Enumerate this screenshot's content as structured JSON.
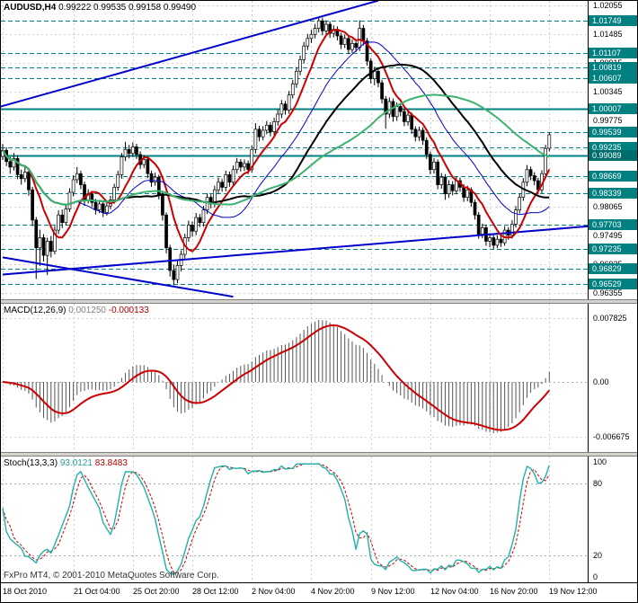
{
  "footer": {
    "branding": "FxPro MT4, © 2001-2010 MetaQuotes Software Corp."
  },
  "chart_data": [
    {
      "type": "candlestick",
      "title": "AUDUSD,H4",
      "ohlc_text": "0.99222 0.99535 0.99158 0.99490",
      "ohlc_label": {
        "open": "0.99222",
        "high": "0.99535",
        "low": "0.99158",
        "close": "0.99490"
      },
      "x_tick_labels": [
        "18 Oct 2010",
        "21 Oct 04:00",
        "25 Oct 20:00",
        "28 Oct 12:00",
        "2 Nov 04:00",
        "4 Nov 20:00",
        "9 Nov 12:00",
        "12 Nov 04:00",
        "16 Nov 20:00",
        "19 Nov 12:00"
      ],
      "x_tick_indices": [
        0,
        19,
        35,
        51,
        67,
        83,
        99,
        115,
        131,
        147
      ],
      "y_range": [
        0.9623,
        1.02144
      ],
      "y_grid": {
        "start": 0.96355,
        "step": 0.0057,
        "count": 11
      },
      "levels": [
        {
          "price": 1.01749,
          "style": "dashed"
        },
        {
          "price": 1.01107,
          "style": "dashed"
        },
        {
          "price": 1.00819,
          "style": "dashed"
        },
        {
          "price": 1.00607,
          "style": "dashed"
        },
        {
          "price": 1.00007,
          "style": "solid"
        },
        {
          "price": 0.99539,
          "style": "dashed"
        },
        {
          "price": 0.99235,
          "style": "dashed"
        },
        {
          "price": 0.99089,
          "style": "solid",
          "emphasis": true
        },
        {
          "price": 0.98669,
          "style": "dashed"
        },
        {
          "price": 0.98339,
          "style": "dashed"
        },
        {
          "price": 0.97703,
          "style": "dashed"
        },
        {
          "price": 0.97235,
          "style": "dashed"
        },
        {
          "price": 0.96829,
          "style": "dashed"
        },
        {
          "price": 0.96529,
          "style": "dashed"
        }
      ],
      "trendlines": [
        {
          "from_index": -1,
          "from_price": 1.0004,
          "to_index": 101,
          "to_price": 1.0215
        },
        {
          "from_index": 0,
          "from_price": 0.9672,
          "to_index": 158,
          "to_price": 0.9768
        },
        {
          "from_index": 0,
          "from_price": 0.9706,
          "to_index": 62,
          "to_price": 0.9628
        }
      ],
      "moving_averages": [
        {
          "period": 8,
          "color": "#cc0000",
          "width": 2
        },
        {
          "period": 21,
          "color": "#0000cc",
          "width": 1
        },
        {
          "period": 34,
          "color": "#000000",
          "width": 2
        },
        {
          "period": 55,
          "color": "#3cb371",
          "width": 2
        }
      ],
      "colors": {
        "up": "#ffffff",
        "down": "#000000",
        "border": "#000000",
        "level": "#008080",
        "trend": "#0000cc",
        "grid": "#cdcdcd"
      },
      "candles": [
        [
          0.9906,
          0.9931,
          0.9899,
          0.9918
        ],
        [
          0.9918,
          0.9924,
          0.9887,
          0.9896
        ],
        [
          0.9896,
          0.9905,
          0.9872,
          0.9885
        ],
        [
          0.9885,
          0.9913,
          0.9878,
          0.9902
        ],
        [
          0.9902,
          0.9908,
          0.9861,
          0.987
        ],
        [
          0.987,
          0.988,
          0.985,
          0.9862
        ],
        [
          0.9862,
          0.9888,
          0.9855,
          0.9875
        ],
        [
          0.9875,
          0.9881,
          0.9828,
          0.984
        ],
        [
          0.984,
          0.9846,
          0.9768,
          0.978
        ],
        [
          0.978,
          0.9786,
          0.9663,
          0.9725
        ],
        [
          0.9725,
          0.9761,
          0.9689,
          0.9745
        ],
        [
          0.9745,
          0.9752,
          0.9698,
          0.971
        ],
        [
          0.971,
          0.9745,
          0.9671,
          0.9738
        ],
        [
          0.9738,
          0.9748,
          0.9706,
          0.9718
        ],
        [
          0.9718,
          0.9768,
          0.9712,
          0.976
        ],
        [
          0.976,
          0.9799,
          0.9752,
          0.979
        ],
        [
          0.979,
          0.9801,
          0.9764,
          0.9775
        ],
        [
          0.9775,
          0.981,
          0.9769,
          0.9802
        ],
        [
          0.9802,
          0.9843,
          0.9796,
          0.9835
        ],
        [
          0.9835,
          0.9869,
          0.9827,
          0.986
        ],
        [
          0.986,
          0.9885,
          0.9853,
          0.9872
        ],
        [
          0.9872,
          0.9878,
          0.9841,
          0.985
        ],
        [
          0.985,
          0.9856,
          0.9808,
          0.982
        ],
        [
          0.982,
          0.9841,
          0.9813,
          0.9832
        ],
        [
          0.9832,
          0.9838,
          0.9806,
          0.9815
        ],
        [
          0.9815,
          0.9822,
          0.9791,
          0.98
        ],
        [
          0.98,
          0.982,
          0.9794,
          0.9812
        ],
        [
          0.9812,
          0.9818,
          0.9786,
          0.9795
        ],
        [
          0.9795,
          0.9816,
          0.9789,
          0.9808
        ],
        [
          0.9808,
          0.9828,
          0.9801,
          0.982
        ],
        [
          0.982,
          0.9852,
          0.9812,
          0.9845
        ],
        [
          0.9845,
          0.9878,
          0.9838,
          0.987
        ],
        [
          0.987,
          0.9913,
          0.9862,
          0.9905
        ],
        [
          0.9905,
          0.9935,
          0.9897,
          0.992
        ],
        [
          0.992,
          0.9929,
          0.9902,
          0.9912
        ],
        [
          0.9912,
          0.9934,
          0.9905,
          0.9925
        ],
        [
          0.9925,
          0.9931,
          0.9901,
          0.991
        ],
        [
          0.991,
          0.9916,
          0.9881,
          0.989
        ],
        [
          0.989,
          0.9909,
          0.9883,
          0.99
        ],
        [
          0.99,
          0.9905,
          0.9863,
          0.9872
        ],
        [
          0.9872,
          0.9878,
          0.9846,
          0.9855
        ],
        [
          0.9855,
          0.9874,
          0.9848,
          0.9865
        ],
        [
          0.9865,
          0.987,
          0.9821,
          0.983
        ],
        [
          0.983,
          0.9836,
          0.9779,
          0.979
        ],
        [
          0.979,
          0.9795,
          0.9714,
          0.9725
        ],
        [
          0.9725,
          0.9731,
          0.9668,
          0.968
        ],
        [
          0.968,
          0.9692,
          0.9651,
          0.9662
        ],
        [
          0.9662,
          0.9699,
          0.9655,
          0.969
        ],
        [
          0.969,
          0.972,
          0.9678,
          0.9712
        ],
        [
          0.9712,
          0.9753,
          0.9704,
          0.9745
        ],
        [
          0.9745,
          0.9779,
          0.9737,
          0.977
        ],
        [
          0.977,
          0.9777,
          0.9747,
          0.9758
        ],
        [
          0.9758,
          0.9794,
          0.975,
          0.9785
        ],
        [
          0.9785,
          0.9792,
          0.9766,
          0.9775
        ],
        [
          0.9775,
          0.9808,
          0.9767,
          0.98
        ],
        [
          0.98,
          0.9833,
          0.9792,
          0.9825
        ],
        [
          0.9825,
          0.9831,
          0.9803,
          0.9812
        ],
        [
          0.9812,
          0.9848,
          0.9805,
          0.984
        ],
        [
          0.984,
          0.9864,
          0.9832,
          0.9855
        ],
        [
          0.9855,
          0.9861,
          0.9836,
          0.9845
        ],
        [
          0.9845,
          0.9878,
          0.9837,
          0.987
        ],
        [
          0.987,
          0.9876,
          0.9846,
          0.9855
        ],
        [
          0.9855,
          0.9888,
          0.9848,
          0.988
        ],
        [
          0.988,
          0.9903,
          0.9872,
          0.9895
        ],
        [
          0.9895,
          0.9901,
          0.9876,
          0.9885
        ],
        [
          0.9885,
          0.99,
          0.9877,
          0.9892
        ],
        [
          0.9892,
          0.9898,
          0.9871,
          0.988
        ],
        [
          0.988,
          0.9928,
          0.9874,
          0.992
        ],
        [
          0.992,
          0.9972,
          0.9912,
          0.996
        ],
        [
          0.996,
          0.9967,
          0.9936,
          0.9945
        ],
        [
          0.9945,
          0.9966,
          0.9938,
          0.9958
        ],
        [
          0.9958,
          0.9976,
          0.995,
          0.9968
        ],
        [
          0.9968,
          0.9974,
          0.9946,
          0.9955
        ],
        [
          0.9955,
          0.9983,
          0.9948,
          0.9975
        ],
        [
          0.9975,
          0.9999,
          0.9967,
          0.999
        ],
        [
          0.999,
          1.0018,
          0.9982,
          1.001
        ],
        [
          1.001,
          1.0016,
          0.9989,
          0.9998
        ],
        [
          0.9998,
          1.0036,
          0.9991,
          1.0028
        ],
        [
          1.0028,
          1.0058,
          1.0021,
          1.005
        ],
        [
          1.005,
          1.0083,
          1.0042,
          1.0075
        ],
        [
          1.0075,
          1.0106,
          1.0067,
          1.0098
        ],
        [
          1.0098,
          1.0133,
          1.009,
          1.0125
        ],
        [
          1.0125,
          1.0149,
          1.0117,
          1.014
        ],
        [
          1.014,
          1.0157,
          1.0131,
          1.0148
        ],
        [
          1.0148,
          1.0169,
          1.014,
          1.016
        ],
        [
          1.016,
          1.0183,
          1.0152,
          1.0175
        ],
        [
          1.0175,
          1.0181,
          1.0146,
          1.0155
        ],
        [
          1.0155,
          1.0176,
          1.0147,
          1.0168
        ],
        [
          1.0168,
          1.0174,
          1.0141,
          1.015
        ],
        [
          1.015,
          1.0166,
          1.0142,
          1.0158
        ],
        [
          1.0158,
          1.0164,
          1.0136,
          1.0145
        ],
        [
          1.0145,
          1.0151,
          1.0119,
          1.0128
        ],
        [
          1.0128,
          1.0148,
          1.0121,
          1.014
        ],
        [
          1.014,
          1.0146,
          1.0109,
          1.0118
        ],
        [
          1.0118,
          1.0138,
          1.0111,
          1.013
        ],
        [
          1.013,
          1.0137,
          1.0113,
          1.0122
        ],
        [
          1.0122,
          1.0176,
          1.0115,
          1.016
        ],
        [
          1.016,
          1.0167,
          1.0126,
          1.0135
        ],
        [
          1.0135,
          1.0141,
          1.0086,
          1.0095
        ],
        [
          1.0095,
          1.0101,
          1.0051,
          1.006
        ],
        [
          1.006,
          1.0084,
          1.0047,
          1.0075
        ],
        [
          1.0075,
          1.0081,
          1.0043,
          1.0052
        ],
        [
          1.0052,
          1.0058,
          1.0011,
          1.002
        ],
        [
          1.002,
          1.0026,
          0.9961,
          0.999
        ],
        [
          0.999,
          1.0023,
          0.9982,
          1.0015
        ],
        [
          1.0015,
          1.0021,
          0.9975,
          0.9985
        ],
        [
          0.9985,
          1.0013,
          0.9977,
          1.0005
        ],
        [
          1.0005,
          1.0012,
          0.9986,
          0.9995
        ],
        [
          0.9995,
          1.0001,
          0.9966,
          0.9975
        ],
        [
          0.9975,
          0.9996,
          0.9967,
          0.9988
        ],
        [
          0.9988,
          0.9993,
          0.9951,
          0.996
        ],
        [
          0.996,
          0.9966,
          0.9936,
          0.9945
        ],
        [
          0.9945,
          0.9965,
          0.9937,
          0.9958
        ],
        [
          0.9958,
          0.9964,
          0.9929,
          0.9938
        ],
        [
          0.9938,
          0.9944,
          0.9901,
          0.991
        ],
        [
          0.991,
          0.9916,
          0.9871,
          0.988
        ],
        [
          0.988,
          0.9903,
          0.9872,
          0.9895
        ],
        [
          0.9895,
          0.99,
          0.9841,
          0.985
        ],
        [
          0.985,
          0.9873,
          0.9842,
          0.9865
        ],
        [
          0.9865,
          0.9871,
          0.982,
          0.9832
        ],
        [
          0.9832,
          0.9859,
          0.9824,
          0.985
        ],
        [
          0.985,
          0.9857,
          0.9829,
          0.9838
        ],
        [
          0.9838,
          0.9866,
          0.9831,
          0.9858
        ],
        [
          0.9858,
          0.9864,
          0.9836,
          0.9845
        ],
        [
          0.9845,
          0.9851,
          0.9816,
          0.9825
        ],
        [
          0.9825,
          0.9848,
          0.9817,
          0.984
        ],
        [
          0.984,
          0.9845,
          0.9806,
          0.9815
        ],
        [
          0.9815,
          0.9821,
          0.9781,
          0.979
        ],
        [
          0.979,
          0.9796,
          0.9743,
          0.9752
        ],
        [
          0.9752,
          0.9773,
          0.9744,
          0.9765
        ],
        [
          0.9765,
          0.9771,
          0.9729,
          0.9738
        ],
        [
          0.9738,
          0.9754,
          0.9726,
          0.9745
        ],
        [
          0.9745,
          0.9751,
          0.9722,
          0.973
        ],
        [
          0.973,
          0.975,
          0.9724,
          0.9742
        ],
        [
          0.9742,
          0.9749,
          0.9727,
          0.9735
        ],
        [
          0.9735,
          0.9768,
          0.9729,
          0.976
        ],
        [
          0.976,
          0.9766,
          0.9741,
          0.975
        ],
        [
          0.975,
          0.978,
          0.9743,
          0.9772
        ],
        [
          0.9772,
          0.9808,
          0.9765,
          0.98
        ],
        [
          0.98,
          0.9833,
          0.9793,
          0.9825
        ],
        [
          0.9825,
          0.9863,
          0.9818,
          0.9855
        ],
        [
          0.9855,
          0.9889,
          0.9847,
          0.988
        ],
        [
          0.988,
          0.9886,
          0.9859,
          0.9868
        ],
        [
          0.9868,
          0.9875,
          0.9849,
          0.9858
        ],
        [
          0.9858,
          0.9864,
          0.9831,
          0.984
        ],
        [
          0.984,
          0.9879,
          0.9833,
          0.9872
        ],
        [
          0.9872,
          0.9929,
          0.9864,
          0.9922
        ],
        [
          0.99222,
          0.99535,
          0.99158,
          0.9949
        ]
      ]
    },
    {
      "type": "macd",
      "label": "MACD(12,26,9)",
      "values": [
        "0.001250",
        "-0.000133"
      ],
      "params": {
        "fast": 12,
        "slow": 26,
        "signal": 9
      },
      "y_ticks": [
        {
          "label": "0.007825",
          "value": 0.007825
        },
        {
          "label": "0.00",
          "value": 0
        },
        {
          "label": "-0.006675",
          "value": -0.006675
        }
      ],
      "y_range": [
        -0.0086,
        0.0096
      ],
      "colors": {
        "histogram": "#555555",
        "signal": "#cc0000"
      }
    },
    {
      "type": "stochastic",
      "label": "Stoch(13,3,3)",
      "values": [
        "93.0121",
        "83.8483"
      ],
      "params": {
        "k": 13,
        "d": 3,
        "slowing": 3
      },
      "levels": [
        80,
        20
      ],
      "y_ticks": [
        {
          "label": "100",
          "value": 100
        },
        {
          "label": "80",
          "value": 80
        },
        {
          "label": "20",
          "value": 20
        },
        {
          "label": "0",
          "value": 0
        }
      ],
      "colors": {
        "main": "#20b2aa",
        "signal": "#cc0000"
      }
    }
  ]
}
